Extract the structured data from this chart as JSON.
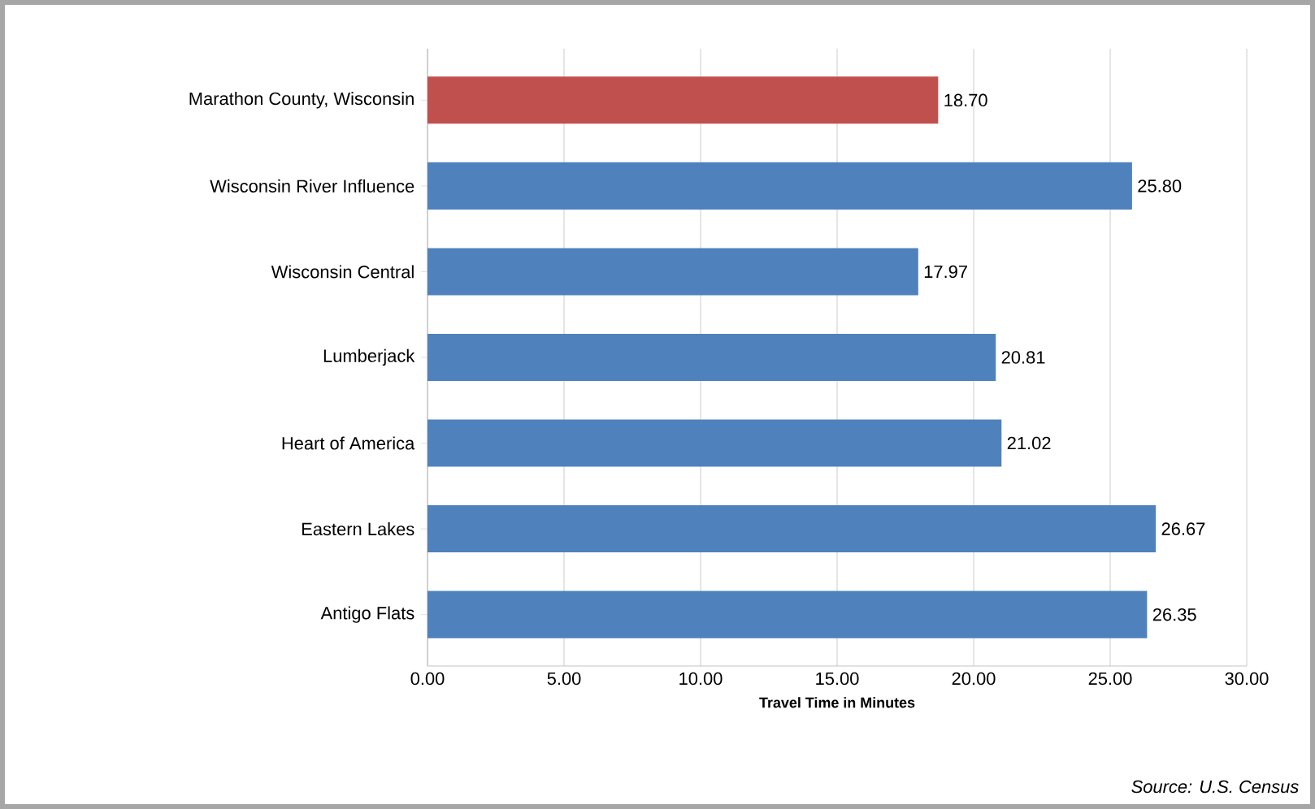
{
  "chart_data": {
    "type": "bar",
    "orientation": "horizontal",
    "xlabel": "Travel Time in Minutes",
    "categories": [
      "Marathon County, Wisconsin",
      "Wisconsin River Influence",
      "Wisconsin Central",
      "Lumberjack",
      "Heart of America",
      "Eastern Lakes",
      "Antigo Flats"
    ],
    "values": [
      18.7,
      25.8,
      17.97,
      20.81,
      21.02,
      26.67,
      26.35
    ],
    "value_labels": [
      "18.70",
      "25.80",
      "17.97",
      "20.81",
      "21.02",
      "26.67",
      "26.35"
    ],
    "colors": [
      "#c0504d",
      "#4f81bd",
      "#4f81bd",
      "#4f81bd",
      "#4f81bd",
      "#4f81bd",
      "#4f81bd"
    ],
    "xlim": [
      0,
      30
    ],
    "xticks": [
      {
        "value": 0,
        "label": "0.00"
      },
      {
        "value": 5,
        "label": "5.00"
      },
      {
        "value": 10,
        "label": "10.00"
      },
      {
        "value": 15,
        "label": "15.00"
      },
      {
        "value": 20,
        "label": "20.00"
      },
      {
        "value": 25,
        "label": "25.00"
      },
      {
        "value": 30,
        "label": "30.00"
      }
    ],
    "grid": "x",
    "annotations": [
      "Source: U.S. Census"
    ]
  }
}
